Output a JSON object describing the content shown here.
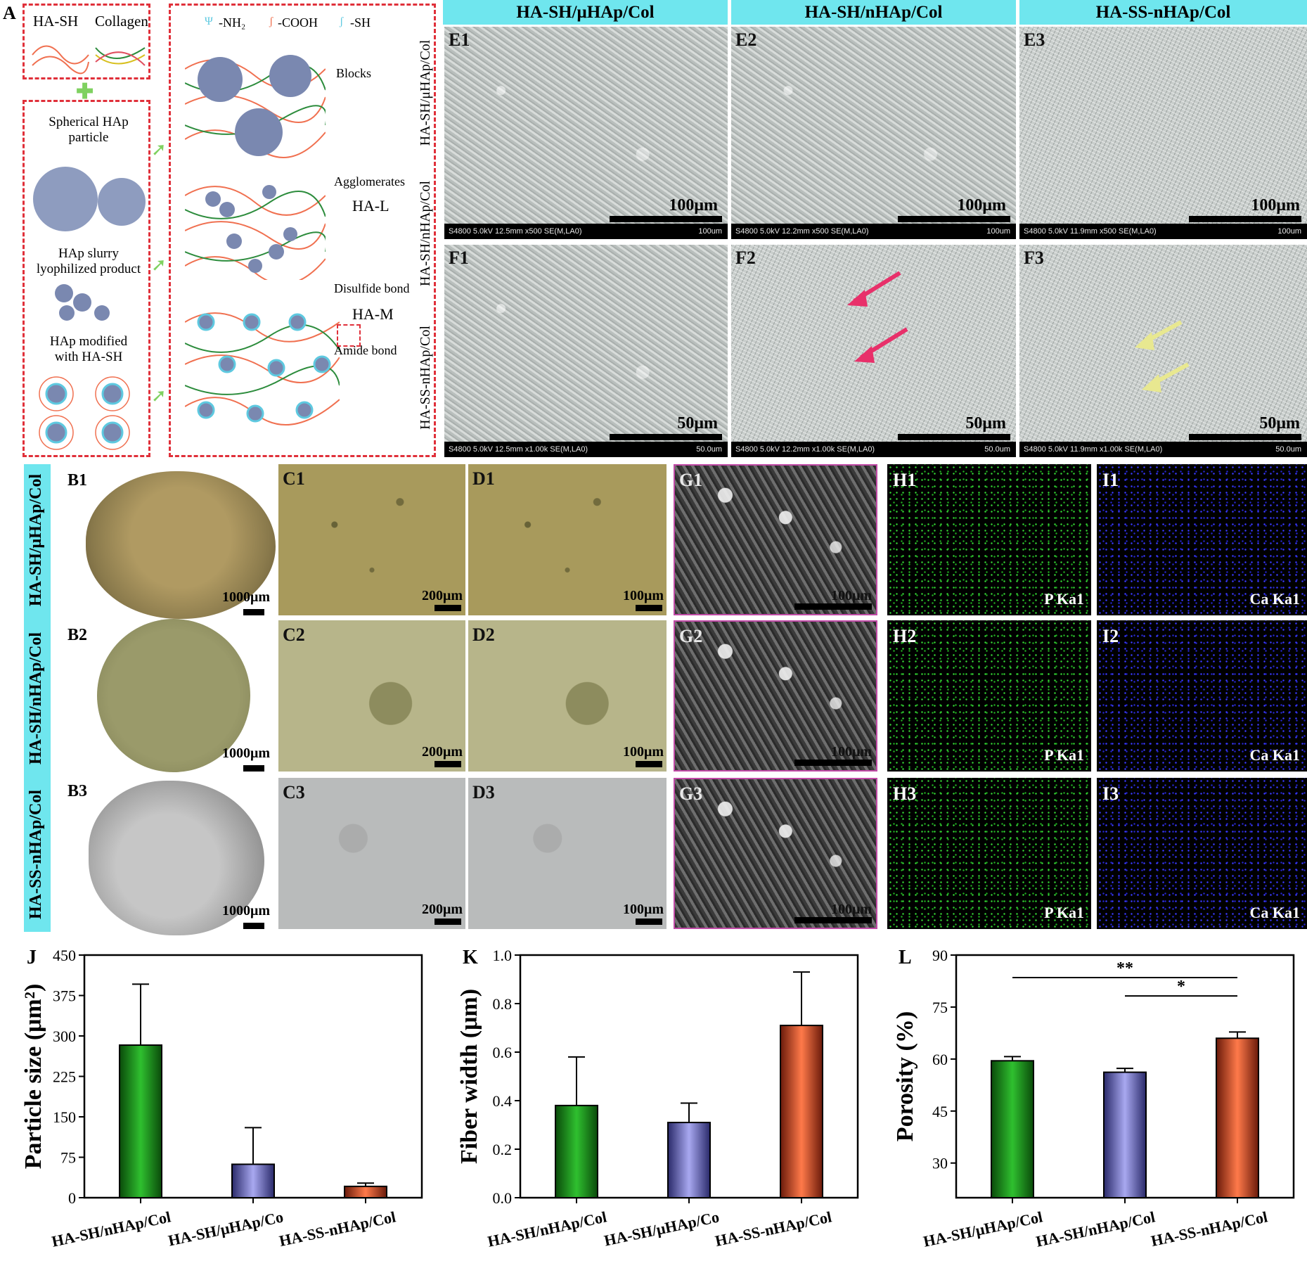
{
  "panel_a": {
    "letter": "A",
    "ha_sh": "HA-SH",
    "collagen": "Collagen",
    "nh2": "-NH₂",
    "cooh": "-COOH",
    "sh": "-SH",
    "spherical": "Spherical HAp\nparticle",
    "slurry": "HAp slurry\nlyophilized product",
    "modified": "HAp modified\nwith HA-SH",
    "blocks": "Blocks",
    "agglomerates": "Agglomerates",
    "ha_l": "HA-L",
    "disulfide": "Disulfide bond",
    "ha_m": "HA-M",
    "amide": "Amide bond"
  },
  "sem_columns": [
    "HA-SH/μHAp/Col",
    "HA-SH/nHAp/Col",
    "HA-SS-nHAp/Col"
  ],
  "sem_row_side_labels": [
    "HA-SH/μHAp/Col",
    "HA-SH/nHAp/Col",
    "HA-SS-nHAp/Col"
  ],
  "sem_e": [
    {
      "letter": "E1",
      "scale": "100μm",
      "info": "S4800 5.0kV 12.5mm x500 SE(M,LA0)",
      "tick": "100um"
    },
    {
      "letter": "E2",
      "scale": "100μm",
      "info": "S4800 5.0kV 12.2mm x500 SE(M,LA0)",
      "tick": "100um"
    },
    {
      "letter": "E3",
      "scale": "100μm",
      "info": "S4800 5.0kV 11.9mm x500 SE(M,LA0)",
      "tick": "100um"
    }
  ],
  "sem_f": [
    {
      "letter": "F1",
      "scale": "50μm",
      "info": "S4800 5.0kV 12.5mm x1.00k SE(M,LA0)",
      "tick": "50.0um"
    },
    {
      "letter": "F2",
      "scale": "50μm",
      "info": "S4800 5.0kV 12.2mm x1.00k SE(M,LA0)",
      "tick": "50.0um"
    },
    {
      "letter": "F3",
      "scale": "50μm",
      "info": "S4800 5.0kV 11.9mm x1.00k SE(M,LA0)",
      "tick": "50.0um"
    }
  ],
  "row_labels": [
    "HA-SH/μHAp/Col",
    "HA-SH/nHAp/Col",
    "HA-SS-nHAp/Col"
  ],
  "rows": [
    {
      "b": "B1",
      "c": "C1",
      "d": "D1",
      "g": "G1",
      "h": "H1",
      "i": "I1"
    },
    {
      "b": "B2",
      "c": "C2",
      "d": "D2",
      "g": "G2",
      "h": "H2",
      "i": "I2"
    },
    {
      "b": "B3",
      "c": "C3",
      "d": "D3",
      "g": "G3",
      "h": "H3",
      "i": "I3"
    }
  ],
  "scales": {
    "b": "1000μm",
    "c": "200μm",
    "d": "100μm",
    "g": "100μm"
  },
  "eds": {
    "p": "P Ka1",
    "ca": "Ca Ka1"
  },
  "colors": {
    "green": "#1a9a1a",
    "blue": "#7a78d8",
    "red": "#f26a3a",
    "cyan": "#6fe6ee",
    "dash": "#e0303a"
  },
  "chart_data": [
    {
      "letter": "J",
      "type": "bar",
      "categories": [
        "HA-SH/nHAp/Col",
        "HA-SH/μHAp/Co",
        "HA-SS-nHAp/Col"
      ],
      "values": [
        283,
        62,
        21
      ],
      "errors": [
        113,
        68,
        6
      ],
      "ylabel": "Particle size (μm²)",
      "ylim": [
        0,
        450
      ],
      "ticks": [
        "0",
        "75",
        "150",
        "225",
        "300",
        "375",
        "450"
      ],
      "bar_colors": [
        "green",
        "blue",
        "red"
      ]
    },
    {
      "letter": "K",
      "type": "bar",
      "categories": [
        "HA-SH/nHAp/Col",
        "HA-SH/μHAp/Co",
        "HA-SS-nHAp/Col"
      ],
      "values": [
        0.38,
        0.31,
        0.71
      ],
      "errors": [
        0.2,
        0.08,
        0.22
      ],
      "ylabel": "Fiber width (μm)",
      "ylim": [
        0,
        1.0
      ],
      "ticks": [
        "0.0",
        "0.2",
        "0.4",
        "0.6",
        "0.8",
        "1.0"
      ],
      "bar_colors": [
        "green",
        "blue",
        "red"
      ]
    },
    {
      "letter": "L",
      "type": "bar",
      "categories": [
        "HA-SH/μHAp/Col",
        "HA-SH/nHAp/Col",
        "HA-SS-nHAp/Col"
      ],
      "values": [
        59.5,
        56.2,
        66.0
      ],
      "errors": [
        1.2,
        1.1,
        1.8
      ],
      "ylabel": "Porosity (%)",
      "ylim": [
        20,
        90
      ],
      "ticks": [
        "30",
        "45",
        "60",
        "75",
        "90"
      ],
      "bar_colors": [
        "green",
        "blue",
        "red"
      ],
      "significance": [
        {
          "from": 0,
          "to": 2,
          "label": "**"
        },
        {
          "from": 1,
          "to": 2,
          "label": "*"
        }
      ]
    }
  ]
}
